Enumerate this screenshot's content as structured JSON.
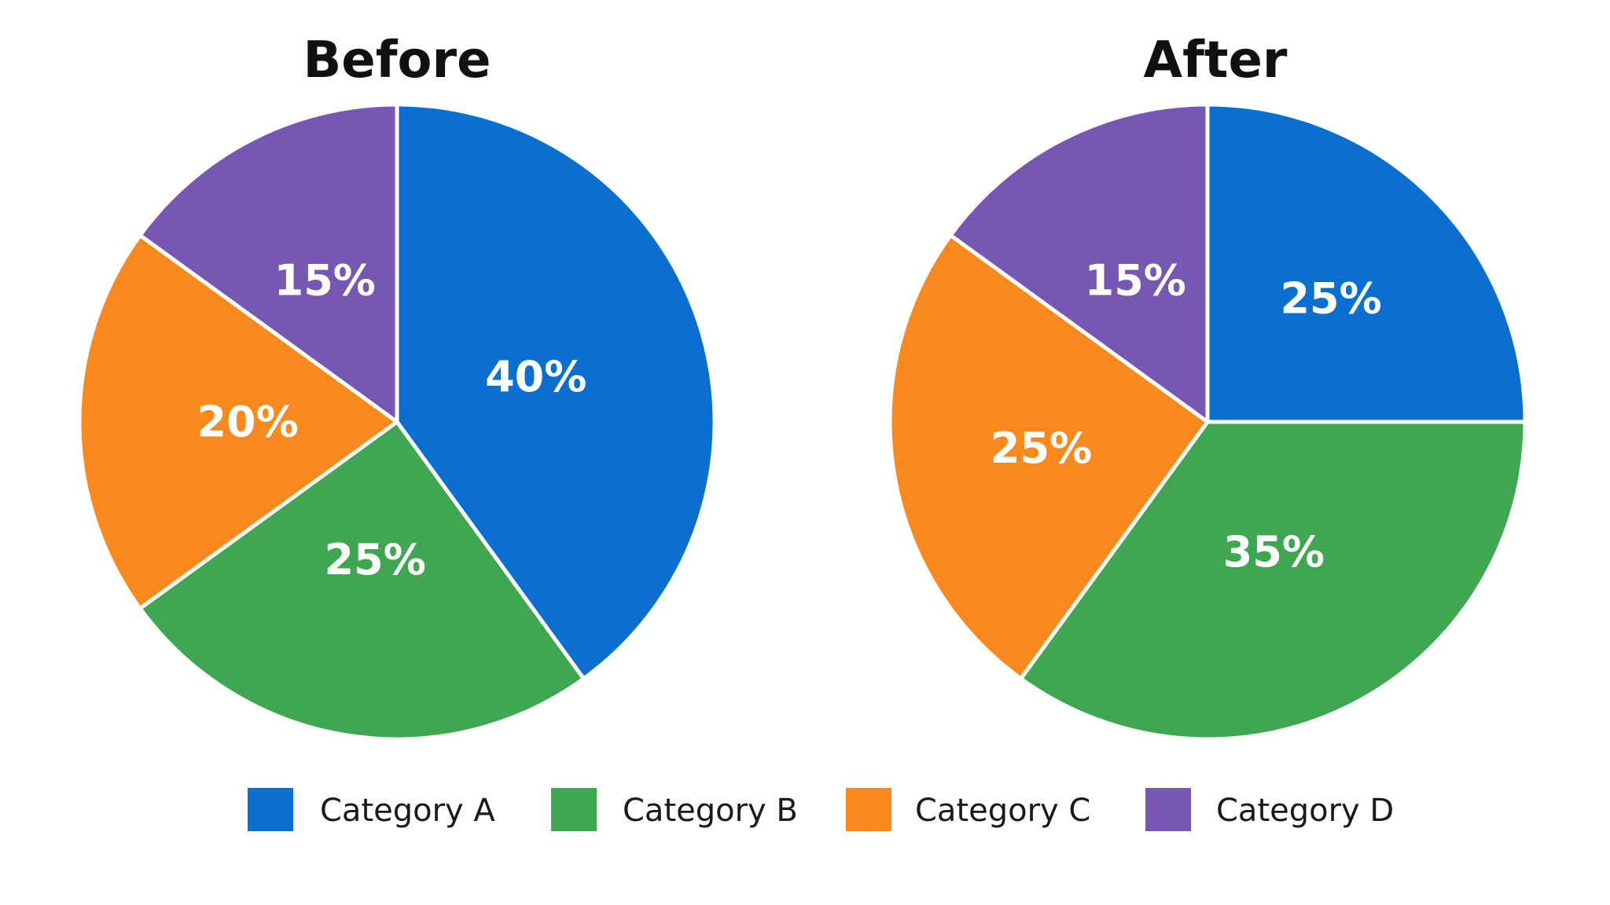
{
  "chart_data": [
    {
      "type": "pie",
      "title": "Before",
      "categories": [
        "Category A",
        "Category B",
        "Category C",
        "Category D"
      ],
      "values": [
        40,
        25,
        20,
        15
      ],
      "labels": [
        "40%",
        "25%",
        "20%",
        "15%"
      ]
    },
    {
      "type": "pie",
      "title": "After",
      "categories": [
        "Category A",
        "Category B",
        "Category C",
        "Category D"
      ],
      "values": [
        25,
        35,
        25,
        15
      ],
      "labels": [
        "25%",
        "35%",
        "25%",
        "15%"
      ]
    }
  ],
  "legend": {
    "placement": "bottom",
    "items": [
      {
        "label": "Category A",
        "color": "#0B6FD1"
      },
      {
        "label": "Category B",
        "color": "#3FA751"
      },
      {
        "label": "Category C",
        "color": "#F9891D"
      },
      {
        "label": "Category D",
        "color": "#7657B3"
      }
    ]
  }
}
